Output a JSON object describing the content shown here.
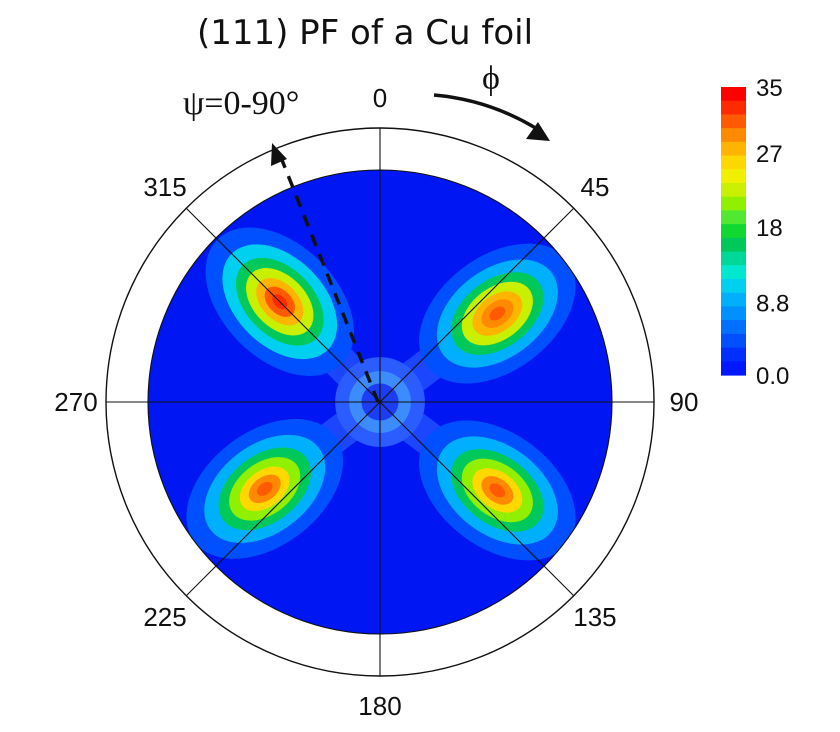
{
  "chart_data": {
    "type": "heatmap",
    "subtype": "polar pole figure contour",
    "title": "(111) PF of a Cu foil",
    "radial_axis_label": "ψ=0-90°",
    "angular_axis_label": "ϕ",
    "angular_tick_labels": [
      "0",
      "45",
      "90",
      "135",
      "180",
      "225",
      "270",
      "315"
    ],
    "angular_tick_values_deg": [
      0,
      45,
      90,
      135,
      180,
      225,
      270,
      315
    ],
    "radial_range_deg": [
      0,
      90
    ],
    "angle_direction": "clockwise from top",
    "colorbar": {
      "tick_labels": [
        "35",
        "27",
        "18",
        "8.8",
        "0.0"
      ],
      "tick_values": [
        35,
        27,
        18,
        8.8,
        0.0
      ],
      "range": [
        0,
        35
      ],
      "colors": [
        "#ff0000",
        "#ff2a00",
        "#ff5a00",
        "#ff8a00",
        "#ffb400",
        "#ffd800",
        "#f0f000",
        "#c8f000",
        "#90f000",
        "#50e830",
        "#10d830",
        "#00c85a",
        "#00d89a",
        "#00e8d0",
        "#00d0f0",
        "#00b0ff",
        "#0090ff",
        "#0070ff",
        "#0050ff",
        "#0030ff",
        "#0018ff"
      ],
      "background_color": "#0016f2"
    },
    "peaks": [
      {
        "phi": 315,
        "psi": 55,
        "value": 33
      },
      {
        "phi": 53,
        "psi": 57,
        "value": 32
      },
      {
        "phi": 127,
        "psi": 57,
        "value": 31
      },
      {
        "phi": 233,
        "psi": 56,
        "value": 31
      }
    ],
    "central_ring": {
      "psi": 12,
      "value": 9
    },
    "grid": true
  }
}
